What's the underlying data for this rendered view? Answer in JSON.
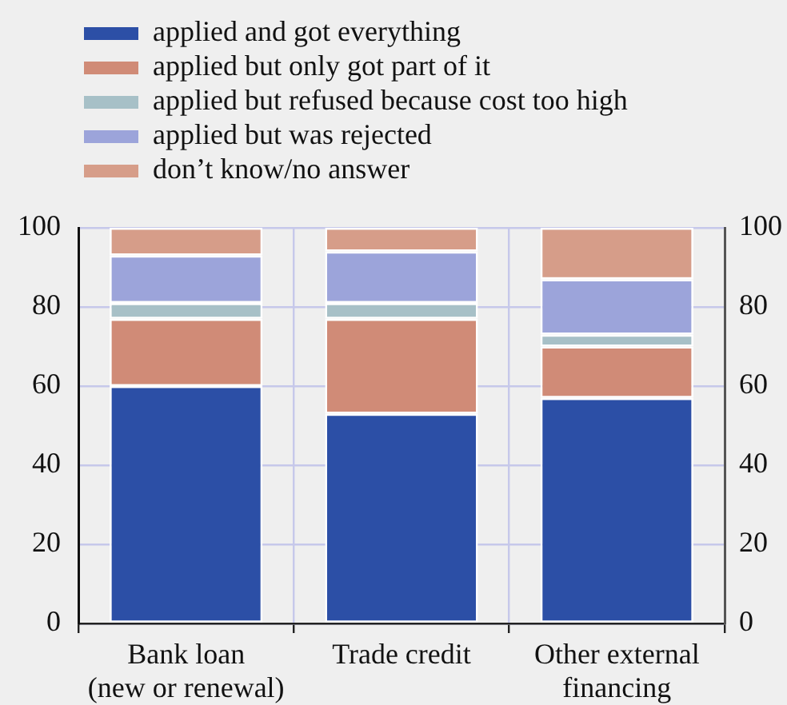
{
  "chart_data": {
    "type": "bar",
    "stacked": true,
    "categories": [
      "Bank loan\n(new or renewal)",
      "Trade credit",
      "Other external\nfinancing"
    ],
    "series": [
      {
        "name": "applied and got everything",
        "color": "#2c4fa6",
        "values": [
          60,
          53,
          57
        ]
      },
      {
        "name": "applied but only got part of it",
        "color": "#d08b77",
        "values": [
          17,
          24,
          13
        ]
      },
      {
        "name": "applied but refused because cost too high",
        "color": "#a7c0c7",
        "values": [
          4,
          4,
          3
        ]
      },
      {
        "name": "applied but was rejected",
        "color": "#9ca4da",
        "values": [
          12,
          13,
          14
        ]
      },
      {
        "name": "don’t know/no answer",
        "color": "#d69d89",
        "values": [
          7,
          6,
          13
        ]
      }
    ],
    "ylim": [
      0,
      100
    ],
    "yticks": [
      0,
      20,
      40,
      60,
      80,
      100
    ],
    "y2lim": [
      0,
      100
    ],
    "y2ticks": [
      0,
      20,
      40,
      60,
      80,
      100
    ],
    "grid": true,
    "legend": "top left"
  }
}
